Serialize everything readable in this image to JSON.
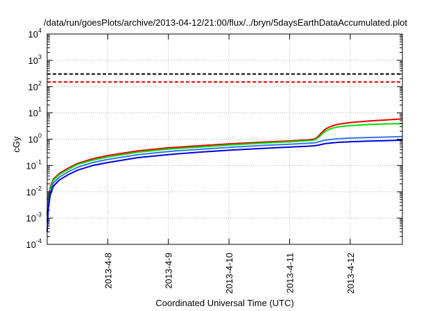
{
  "chart_data": {
    "type": "line",
    "title": "/data/run/goesPlots/archive/2013-04-12/21:00/flux/../bryn/5daysEarthDataAccumulated.plot",
    "xlabel": "Coordinated Universal Time (UTC)",
    "ylabel": "cGy",
    "yscale": "log",
    "ylim": [
      0.0001,
      10000
    ],
    "xlim": [
      7.0,
      12.86
    ],
    "grid": true,
    "x_ticks": [
      {
        "value": 8,
        "label": "2013-4-8"
      },
      {
        "value": 9,
        "label": "2013-4-9"
      },
      {
        "value": 10,
        "label": "2013-4-10"
      },
      {
        "value": 11,
        "label": "2013-4-11"
      },
      {
        "value": 12,
        "label": "2013-4-12"
      }
    ],
    "y_ticks": [
      {
        "value": 0.0001,
        "base": "10",
        "exp": "-4"
      },
      {
        "value": 0.001,
        "base": "10",
        "exp": "-3"
      },
      {
        "value": 0.01,
        "base": "10",
        "exp": "-2"
      },
      {
        "value": 0.1,
        "base": "10",
        "exp": "-1"
      },
      {
        "value": 1,
        "base": "10",
        "exp": "0"
      },
      {
        "value": 10,
        "base": "10",
        "exp": "1"
      },
      {
        "value": 100,
        "base": "10",
        "exp": "2"
      },
      {
        "value": 1000,
        "base": "10",
        "exp": "3"
      },
      {
        "value": 10000,
        "base": "10",
        "exp": "4"
      }
    ],
    "thresholds": [
      {
        "value": 300,
        "color": "#000000",
        "style": "dashed"
      },
      {
        "value": 150,
        "color": "#ee0000",
        "style": "dashed"
      }
    ],
    "series": [
      {
        "color": "#ee0000",
        "x": [
          7.0,
          7.02,
          7.05,
          7.1,
          7.2,
          7.35,
          7.5,
          7.75,
          8.0,
          8.5,
          9.0,
          9.5,
          10.0,
          10.5,
          11.0,
          11.3,
          11.4,
          11.45,
          11.5,
          11.55,
          11.6,
          11.7,
          11.8,
          12.0,
          12.3,
          12.6,
          12.86
        ],
        "y": [
          0.0015,
          0.006,
          0.015,
          0.03,
          0.05,
          0.08,
          0.12,
          0.18,
          0.24,
          0.36,
          0.47,
          0.56,
          0.66,
          0.76,
          0.86,
          0.94,
          1.0,
          1.15,
          1.5,
          2.0,
          2.5,
          3.2,
          3.7,
          4.3,
          4.9,
          5.4,
          5.9
        ]
      },
      {
        "color": "#00dd00",
        "x": [
          7.0,
          7.02,
          7.05,
          7.1,
          7.2,
          7.35,
          7.5,
          7.75,
          8.0,
          8.5,
          9.0,
          9.5,
          10.0,
          10.5,
          11.0,
          11.3,
          11.4,
          11.45,
          11.5,
          11.55,
          11.6,
          11.7,
          11.8,
          12.0,
          12.3,
          12.6,
          12.86
        ],
        "y": [
          0.0012,
          0.005,
          0.013,
          0.027,
          0.045,
          0.072,
          0.11,
          0.16,
          0.21,
          0.32,
          0.42,
          0.5,
          0.6,
          0.7,
          0.8,
          0.88,
          0.92,
          1.05,
          1.3,
          1.7,
          2.1,
          2.6,
          2.95,
          3.3,
          3.6,
          3.8,
          3.9
        ]
      },
      {
        "color": "#3377ee",
        "x": [
          7.0,
          7.02,
          7.05,
          7.1,
          7.2,
          7.35,
          7.5,
          7.75,
          8.0,
          8.5,
          9.0,
          9.5,
          10.0,
          10.5,
          11.0,
          11.3,
          11.4,
          11.45,
          11.5,
          11.55,
          11.6,
          11.7,
          11.8,
          12.0,
          12.3,
          12.6,
          12.86
        ],
        "y": [
          0.0007,
          0.004,
          0.01,
          0.021,
          0.036,
          0.058,
          0.085,
          0.13,
          0.17,
          0.26,
          0.34,
          0.41,
          0.49,
          0.57,
          0.64,
          0.7,
          0.72,
          0.76,
          0.82,
          0.88,
          0.93,
          0.99,
          1.04,
          1.1,
          1.16,
          1.21,
          1.25
        ]
      },
      {
        "color": "#0000dd",
        "x": [
          7.0,
          7.02,
          7.05,
          7.1,
          7.2,
          7.35,
          7.5,
          7.75,
          8.0,
          8.5,
          9.0,
          9.5,
          10.0,
          10.5,
          11.0,
          11.3,
          11.4,
          11.45,
          11.5,
          11.55,
          11.6,
          11.7,
          11.8,
          12.0,
          12.3,
          12.6,
          12.86
        ],
        "y": [
          0.0003,
          0.0025,
          0.0075,
          0.016,
          0.028,
          0.045,
          0.066,
          0.1,
          0.13,
          0.2,
          0.26,
          0.32,
          0.38,
          0.44,
          0.5,
          0.54,
          0.56,
          0.58,
          0.61,
          0.65,
          0.68,
          0.72,
          0.76,
          0.8,
          0.85,
          0.88,
          0.92
        ]
      }
    ]
  }
}
